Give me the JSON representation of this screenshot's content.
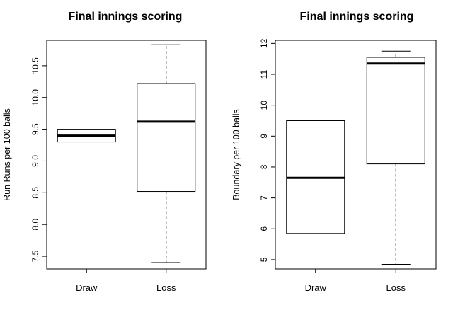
{
  "chart_data": [
    {
      "type": "boxplot",
      "title": "Final innings scoring",
      "xlabel": "",
      "ylabel": "Run Runs per 100 balls",
      "ylim": [
        7.3,
        10.9
      ],
      "yticks": [
        "7.5",
        "8.0",
        "8.5",
        "9.0",
        "9.5",
        "10.0",
        "10.5"
      ],
      "categories": [
        "Draw",
        "Loss"
      ],
      "boxes": [
        {
          "category": "Draw",
          "whisker_low": 9.3,
          "q1": 9.3,
          "median": 9.4,
          "q3": 9.5,
          "whisker_high": 9.5
        },
        {
          "category": "Loss",
          "whisker_low": 7.4,
          "q1": 8.52,
          "median": 9.62,
          "q3": 10.22,
          "whisker_high": 10.83
        }
      ],
      "grid": false,
      "legend": "none"
    },
    {
      "type": "boxplot",
      "title": "Final innings scoring",
      "xlabel": "",
      "ylabel": "Boundary per 100 balls",
      "ylim": [
        4.7,
        12.1
      ],
      "yticks": [
        "5",
        "6",
        "7",
        "8",
        "9",
        "10",
        "11",
        "12"
      ],
      "categories": [
        "Draw",
        "Loss"
      ],
      "boxes": [
        {
          "category": "Draw",
          "whisker_low": 5.85,
          "q1": 5.85,
          "median": 7.65,
          "q3": 9.5,
          "whisker_high": 9.5
        },
        {
          "category": "Loss",
          "whisker_low": 4.85,
          "q1": 8.1,
          "median": 11.35,
          "q3": 11.55,
          "whisker_high": 11.75
        }
      ],
      "grid": false,
      "legend": "none"
    }
  ]
}
